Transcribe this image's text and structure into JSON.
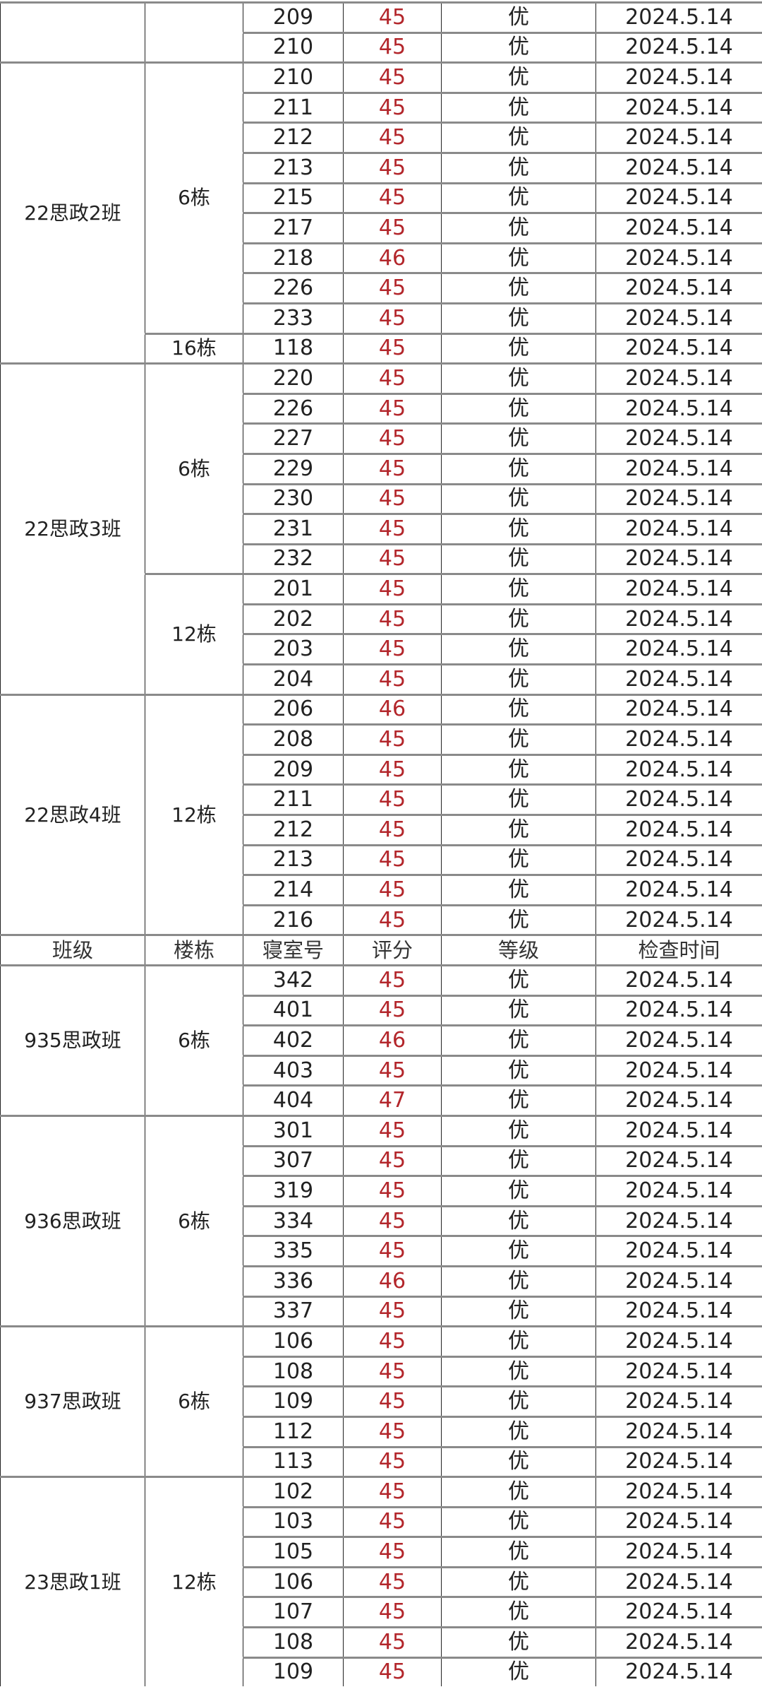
{
  "colors": {
    "score": "#b3262b",
    "text": "#222222",
    "row_line": "#8a8a8a"
  },
  "header": {
    "class": "班级",
    "building": "楼栋",
    "room": "寝室号",
    "score": "评分",
    "grade": "等级",
    "date": "检查时间"
  },
  "sections": [
    {
      "type": "group",
      "class": "",
      "buildings": [
        {
          "name": "",
          "rooms": [
            {
              "room": "209",
              "score": "45",
              "grade": "优",
              "date": "2024.5.14"
            },
            {
              "room": "210",
              "score": "45",
              "grade": "优",
              "date": "2024.5.14"
            }
          ]
        }
      ]
    },
    {
      "type": "group",
      "class": "22思政2班",
      "buildings": [
        {
          "name": "6栋",
          "rooms": [
            {
              "room": "210",
              "score": "45",
              "grade": "优",
              "date": "2024.5.14"
            },
            {
              "room": "211",
              "score": "45",
              "grade": "优",
              "date": "2024.5.14"
            },
            {
              "room": "212",
              "score": "45",
              "grade": "优",
              "date": "2024.5.14"
            },
            {
              "room": "213",
              "score": "45",
              "grade": "优",
              "date": "2024.5.14"
            },
            {
              "room": "215",
              "score": "45",
              "grade": "优",
              "date": "2024.5.14"
            },
            {
              "room": "217",
              "score": "45",
              "grade": "优",
              "date": "2024.5.14"
            },
            {
              "room": "218",
              "score": "46",
              "grade": "优",
              "date": "2024.5.14"
            },
            {
              "room": "226",
              "score": "45",
              "grade": "优",
              "date": "2024.5.14"
            },
            {
              "room": "233",
              "score": "45",
              "grade": "优",
              "date": "2024.5.14"
            }
          ]
        },
        {
          "name": "16栋",
          "rooms": [
            {
              "room": "118",
              "score": "45",
              "grade": "优",
              "date": "2024.5.14"
            }
          ]
        }
      ]
    },
    {
      "type": "group",
      "class": "22思政3班",
      "buildings": [
        {
          "name": "6栋",
          "rooms": [
            {
              "room": "220",
              "score": "45",
              "grade": "优",
              "date": "2024.5.14"
            },
            {
              "room": "226",
              "score": "45",
              "grade": "优",
              "date": "2024.5.14"
            },
            {
              "room": "227",
              "score": "45",
              "grade": "优",
              "date": "2024.5.14"
            },
            {
              "room": "229",
              "score": "45",
              "grade": "优",
              "date": "2024.5.14"
            },
            {
              "room": "230",
              "score": "45",
              "grade": "优",
              "date": "2024.5.14"
            },
            {
              "room": "231",
              "score": "45",
              "grade": "优",
              "date": "2024.5.14"
            },
            {
              "room": "232",
              "score": "45",
              "grade": "优",
              "date": "2024.5.14"
            }
          ]
        },
        {
          "name": "12栋",
          "rooms": [
            {
              "room": "201",
              "score": "45",
              "grade": "优",
              "date": "2024.5.14"
            },
            {
              "room": "202",
              "score": "45",
              "grade": "优",
              "date": "2024.5.14"
            },
            {
              "room": "203",
              "score": "45",
              "grade": "优",
              "date": "2024.5.14"
            },
            {
              "room": "204",
              "score": "45",
              "grade": "优",
              "date": "2024.5.14"
            }
          ]
        }
      ]
    },
    {
      "type": "group",
      "class": "22思政4班",
      "buildings": [
        {
          "name": "12栋",
          "rooms": [
            {
              "room": "206",
              "score": "46",
              "grade": "优",
              "date": "2024.5.14"
            },
            {
              "room": "208",
              "score": "45",
              "grade": "优",
              "date": "2024.5.14"
            },
            {
              "room": "209",
              "score": "45",
              "grade": "优",
              "date": "2024.5.14"
            },
            {
              "room": "211",
              "score": "45",
              "grade": "优",
              "date": "2024.5.14"
            },
            {
              "room": "212",
              "score": "45",
              "grade": "优",
              "date": "2024.5.14"
            },
            {
              "room": "213",
              "score": "45",
              "grade": "优",
              "date": "2024.5.14"
            },
            {
              "room": "214",
              "score": "45",
              "grade": "优",
              "date": "2024.5.14"
            },
            {
              "room": "216",
              "score": "45",
              "grade": "优",
              "date": "2024.5.14"
            }
          ]
        }
      ]
    },
    {
      "type": "header"
    },
    {
      "type": "group",
      "class": "935思政班",
      "buildings": [
        {
          "name": "6栋",
          "rooms": [
            {
              "room": "342",
              "score": "45",
              "grade": "优",
              "date": "2024.5.14"
            },
            {
              "room": "401",
              "score": "45",
              "grade": "优",
              "date": "2024.5.14"
            },
            {
              "room": "402",
              "score": "46",
              "grade": "优",
              "date": "2024.5.14"
            },
            {
              "room": "403",
              "score": "45",
              "grade": "优",
              "date": "2024.5.14"
            },
            {
              "room": "404",
              "score": "47",
              "grade": "优",
              "date": "2024.5.14"
            }
          ]
        }
      ]
    },
    {
      "type": "group",
      "class": "936思政班",
      "buildings": [
        {
          "name": "6栋",
          "rooms": [
            {
              "room": "301",
              "score": "45",
              "grade": "优",
              "date": "2024.5.14"
            },
            {
              "room": "307",
              "score": "45",
              "grade": "优",
              "date": "2024.5.14"
            },
            {
              "room": "319",
              "score": "45",
              "grade": "优",
              "date": "2024.5.14"
            },
            {
              "room": "334",
              "score": "45",
              "grade": "优",
              "date": "2024.5.14"
            },
            {
              "room": "335",
              "score": "45",
              "grade": "优",
              "date": "2024.5.14"
            },
            {
              "room": "336",
              "score": "46",
              "grade": "优",
              "date": "2024.5.14"
            },
            {
              "room": "337",
              "score": "45",
              "grade": "优",
              "date": "2024.5.14"
            }
          ]
        }
      ]
    },
    {
      "type": "group",
      "class": "937思政班",
      "buildings": [
        {
          "name": "6栋",
          "rooms": [
            {
              "room": "106",
              "score": "45",
              "grade": "优",
              "date": "2024.5.14"
            },
            {
              "room": "108",
              "score": "45",
              "grade": "优",
              "date": "2024.5.14"
            },
            {
              "room": "109",
              "score": "45",
              "grade": "优",
              "date": "2024.5.14"
            },
            {
              "room": "112",
              "score": "45",
              "grade": "优",
              "date": "2024.5.14"
            },
            {
              "room": "113",
              "score": "45",
              "grade": "优",
              "date": "2024.5.14"
            }
          ]
        }
      ]
    },
    {
      "type": "group",
      "class": "23思政1班",
      "buildings": [
        {
          "name": "12栋",
          "rooms": [
            {
              "room": "102",
              "score": "45",
              "grade": "优",
              "date": "2024.5.14"
            },
            {
              "room": "103",
              "score": "45",
              "grade": "优",
              "date": "2024.5.14"
            },
            {
              "room": "105",
              "score": "45",
              "grade": "优",
              "date": "2024.5.14"
            },
            {
              "room": "106",
              "score": "45",
              "grade": "优",
              "date": "2024.5.14"
            },
            {
              "room": "107",
              "score": "45",
              "grade": "优",
              "date": "2024.5.14"
            },
            {
              "room": "108",
              "score": "45",
              "grade": "优",
              "date": "2024.5.14"
            },
            {
              "room": "109",
              "score": "45",
              "grade": "优",
              "date": "2024.5.14"
            }
          ]
        }
      ]
    }
  ]
}
